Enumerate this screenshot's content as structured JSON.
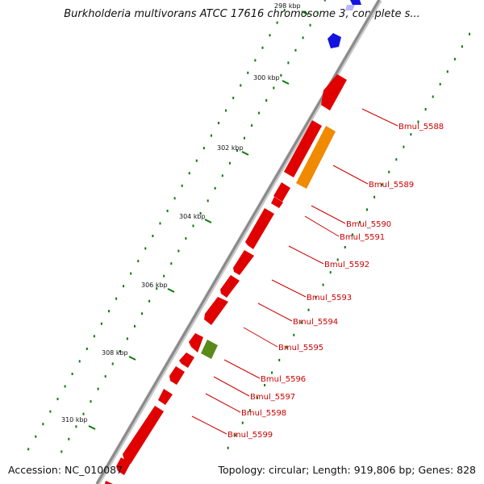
{
  "title": "Burkholderia multivorans ATCC 17616 chromosome 3, complete s...",
  "footer": {
    "accession": "Accession: NC_010087",
    "stats": "Topology: circular; Length: 919,806 bp; Genes: 828"
  },
  "colors": {
    "gene": "#e00000",
    "highlight_orange": "#f08a00",
    "highlight_green": "#5a8a1a",
    "feature_blue": "#1414e0",
    "backbone": "#8a8a8a",
    "gc_dots": "#0a7a0a",
    "label": "#cc0000"
  },
  "scale_labels": [
    "298 kbp",
    "300 kbp",
    "302 kbp",
    "304 kbp",
    "306 kbp",
    "308 kbp",
    "310 kbp"
  ],
  "gene_labels": [
    "Bmul_5588",
    "Bmul_5589",
    "Bmul_5590",
    "Bmul_5591",
    "Bmul_5592",
    "Bmul_5593",
    "Bmul_5594",
    "Bmul_5595",
    "Bmul_5596",
    "Bmul_5597",
    "Bmul_5598",
    "Bmul_5599"
  ]
}
